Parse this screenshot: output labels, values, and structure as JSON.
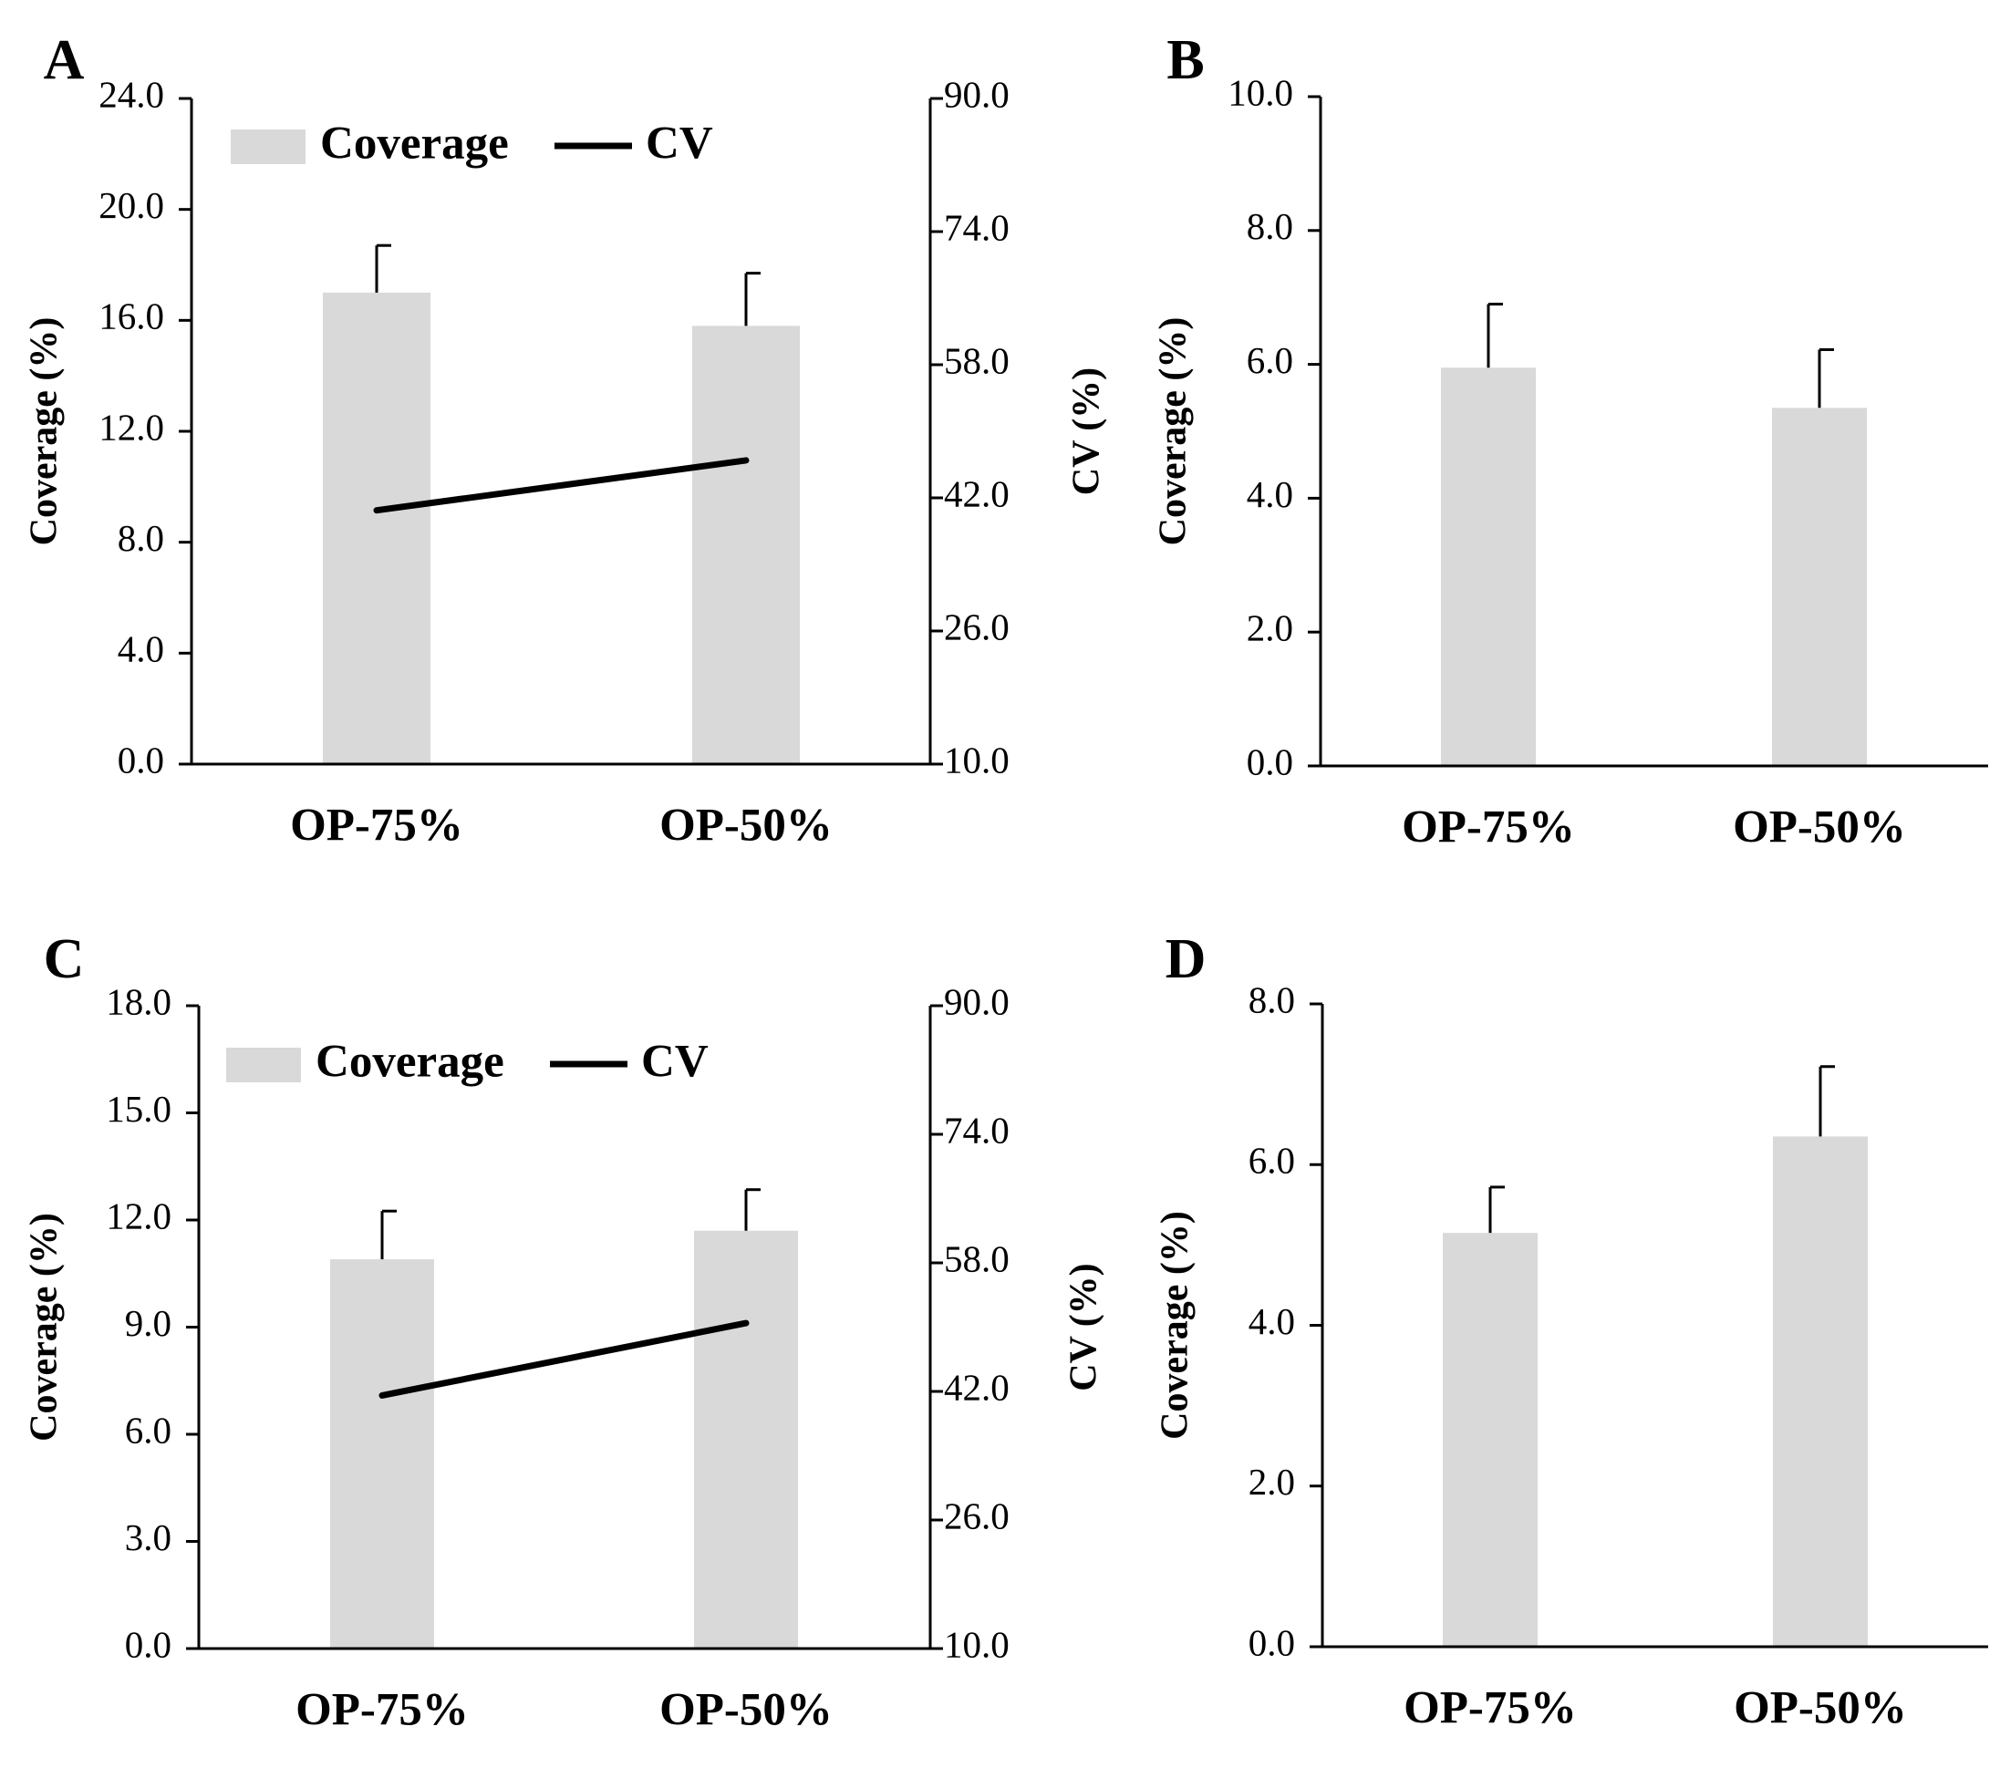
{
  "chart_data": [
    {
      "panel": "A",
      "type": "bar",
      "categories": [
        "OP-75%",
        "OP-50%"
      ],
      "series": [
        {
          "name": "Coverage",
          "axis": "left",
          "values": [
            17.0,
            15.8
          ],
          "error": [
            1.7,
            1.9
          ]
        },
        {
          "name": "CV",
          "axis": "right",
          "type": "line",
          "values": [
            40.5,
            46.5
          ]
        }
      ],
      "ylabel": "Coverage (%)",
      "y2label": "CV (%)",
      "ylim": [
        0,
        24
      ],
      "yticks": [
        "0.0",
        "4.0",
        "8.0",
        "12.0",
        "16.0",
        "20.0",
        "24.0"
      ],
      "y2lim": [
        10,
        90
      ],
      "y2ticks": [
        "10.0",
        "26.0",
        "42.0",
        "58.0",
        "74.0",
        "90.0"
      ],
      "legend": [
        "Coverage",
        "CV"
      ],
      "legend_position": "top-left",
      "grid": false
    },
    {
      "panel": "B",
      "type": "bar",
      "categories": [
        "OP-75%",
        "OP-50%"
      ],
      "series": [
        {
          "name": "Coverage",
          "axis": "left",
          "values": [
            5.95,
            5.35
          ],
          "error": [
            0.95,
            0.87
          ]
        }
      ],
      "ylabel": "Coverage (%)",
      "ylim": [
        0,
        10
      ],
      "yticks": [
        "0.0",
        "2.0",
        "4.0",
        "6.0",
        "8.0",
        "10.0"
      ],
      "grid": false
    },
    {
      "panel": "C",
      "type": "bar",
      "categories": [
        "OP-75%",
        "OP-50%"
      ],
      "series": [
        {
          "name": "Coverage",
          "axis": "left",
          "values": [
            10.9,
            11.7
          ],
          "error": [
            1.35,
            1.15
          ]
        },
        {
          "name": "CV",
          "axis": "right",
          "type": "line",
          "values": [
            41.5,
            50.5
          ]
        }
      ],
      "ylabel": "Coverage (%)",
      "y2label": "CV (%)",
      "ylim": [
        0,
        18
      ],
      "yticks": [
        "0.0",
        "3.0",
        "6.0",
        "9.0",
        "12.0",
        "15.0",
        "18.0"
      ],
      "y2lim": [
        10,
        90
      ],
      "y2ticks": [
        "10.0",
        "26.0",
        "42.0",
        "58.0",
        "74.0",
        "90.0"
      ],
      "legend": [
        "Coverage",
        "CV"
      ],
      "legend_position": "top-left",
      "grid": false
    },
    {
      "panel": "D",
      "type": "bar",
      "categories": [
        "OP-75%",
        "OP-50%"
      ],
      "series": [
        {
          "name": "Coverage",
          "axis": "left",
          "values": [
            5.15,
            6.35
          ],
          "error": [
            0.57,
            0.87
          ]
        }
      ],
      "ylabel": "Coverage (%)",
      "ylim": [
        0,
        8
      ],
      "yticks": [
        "0.0",
        "2.0",
        "4.0",
        "6.0",
        "8.0"
      ],
      "grid": false
    }
  ],
  "colors": {
    "bar": "#d9d9d9",
    "line": "#000000",
    "axis": "#000000"
  }
}
